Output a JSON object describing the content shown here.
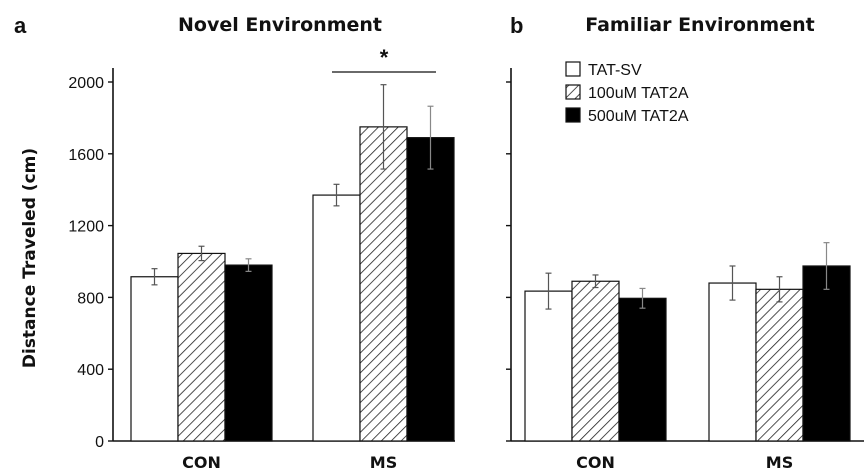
{
  "chart_data": [
    {
      "type": "bar",
      "panel": "a",
      "title": "Novel Environment",
      "xlabel": "",
      "ylabel": "Distance Traveled (cm)",
      "ylim": [
        0,
        2000
      ],
      "yticks": [
        "0",
        "400",
        "800",
        "1200",
        "1600",
        "2000"
      ],
      "categories": [
        "CON",
        "MS"
      ],
      "series": [
        {
          "name": "TAT-SV",
          "values": [
            915,
            1370
          ],
          "errors": [
            45,
            60
          ],
          "fill": "white"
        },
        {
          "name": "100uM TAT2A",
          "values": [
            1045,
            1750
          ],
          "errors": [
            40,
            235
          ],
          "fill": "hatched"
        },
        {
          "name": "500uM TAT2A",
          "values": [
            980,
            1690
          ],
          "errors": [
            35,
            175
          ],
          "fill": "black"
        }
      ],
      "annotation": "*",
      "grid": false
    },
    {
      "type": "bar",
      "panel": "b",
      "title": "Familiar Environment",
      "ylim": [
        0,
        2000
      ],
      "categories": [
        "CON",
        "MS"
      ],
      "series": [
        {
          "name": "TAT-SV",
          "values": [
            835,
            880
          ],
          "errors": [
            100,
            95
          ],
          "fill": "white"
        },
        {
          "name": "100uM TAT2A",
          "values": [
            890,
            845
          ],
          "errors": [
            35,
            70
          ],
          "fill": "hatched"
        },
        {
          "name": "500uM TAT2A",
          "values": [
            795,
            975
          ],
          "errors": [
            55,
            130
          ],
          "fill": "black"
        }
      ],
      "legend": {
        "placement": "top-left",
        "entries": [
          "TAT-SV",
          "100uM TAT2A",
          "500uM TAT2A"
        ]
      },
      "grid": false
    }
  ],
  "colors": {
    "ink": "#111111",
    "bar_white": "#ffffff",
    "bar_black": "#000000"
  }
}
